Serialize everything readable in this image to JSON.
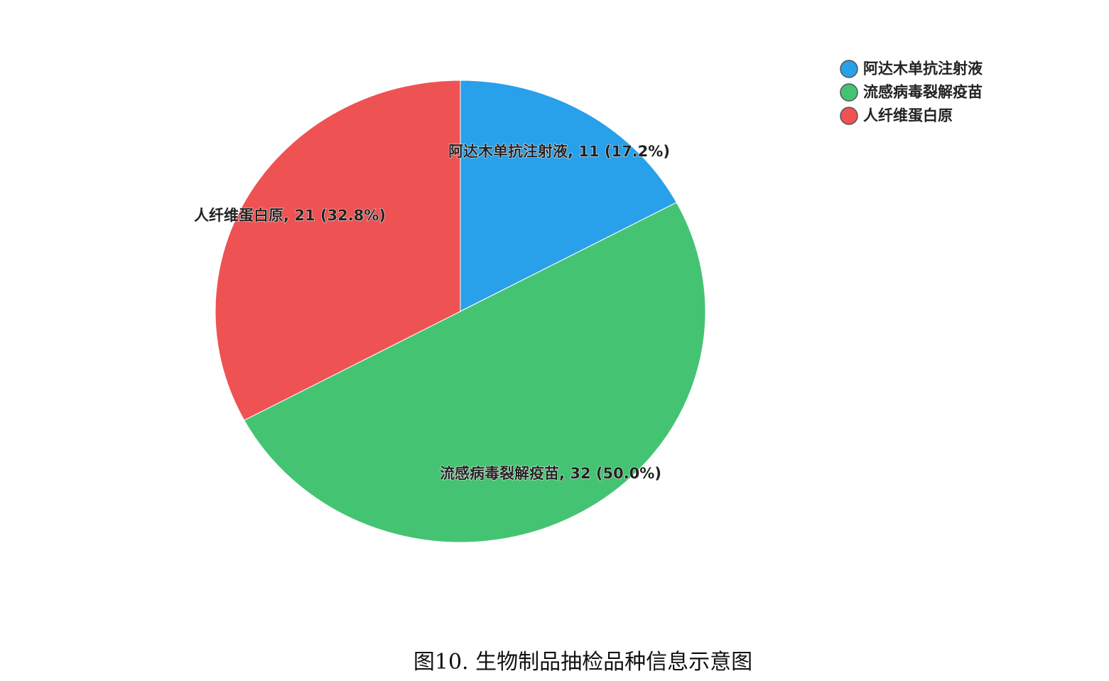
{
  "chart_data": {
    "type": "pie",
    "categories": [
      "阿达木单抗注射液",
      "流感病毒裂解疫苗",
      "人纤维蛋白原"
    ],
    "values": [
      11,
      32,
      21
    ],
    "percentages": [
      "17.2%",
      "50.0%",
      "32.8%"
    ],
    "labels": [
      "阿达木单抗注射液, 11 (17.2%)",
      "流感病毒裂解疫苗, 32 (50.0%)",
      "人纤维蛋白原, 21 (32.8%)"
    ],
    "colors": [
      "#29a0ea",
      "#44c473",
      "#ef5253"
    ],
    "legend_position": "top-right",
    "start": "12 o'clock, clockwise"
  },
  "caption": "图10. 生物制品抽检品种信息示意图"
}
